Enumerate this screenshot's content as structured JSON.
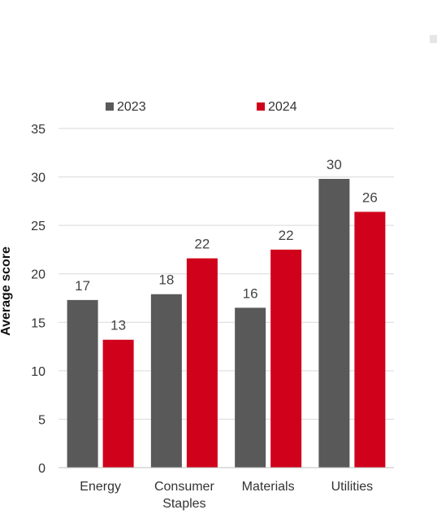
{
  "chart_data": {
    "type": "bar",
    "title": "",
    "xlabel": "",
    "ylabel": "Average score",
    "ylim": [
      0,
      35
    ],
    "yticks": [
      0,
      5,
      10,
      15,
      20,
      25,
      30,
      35
    ],
    "grid": true,
    "legend_position": "top",
    "categories": [
      [
        "Energy"
      ],
      [
        "Consumer",
        "Staples"
      ],
      [
        "Materials"
      ],
      [
        "Utilities"
      ]
    ],
    "series": [
      {
        "name": "2023",
        "color": "#595959",
        "values": [
          17.3,
          17.9,
          16.5,
          29.8
        ],
        "labels": [
          "17",
          "18",
          "16",
          "30"
        ]
      },
      {
        "name": "2024",
        "color": "#d0021b",
        "values": [
          13.2,
          21.6,
          22.5,
          26.4
        ],
        "labels": [
          "13",
          "22",
          "22",
          "26"
        ]
      }
    ]
  }
}
